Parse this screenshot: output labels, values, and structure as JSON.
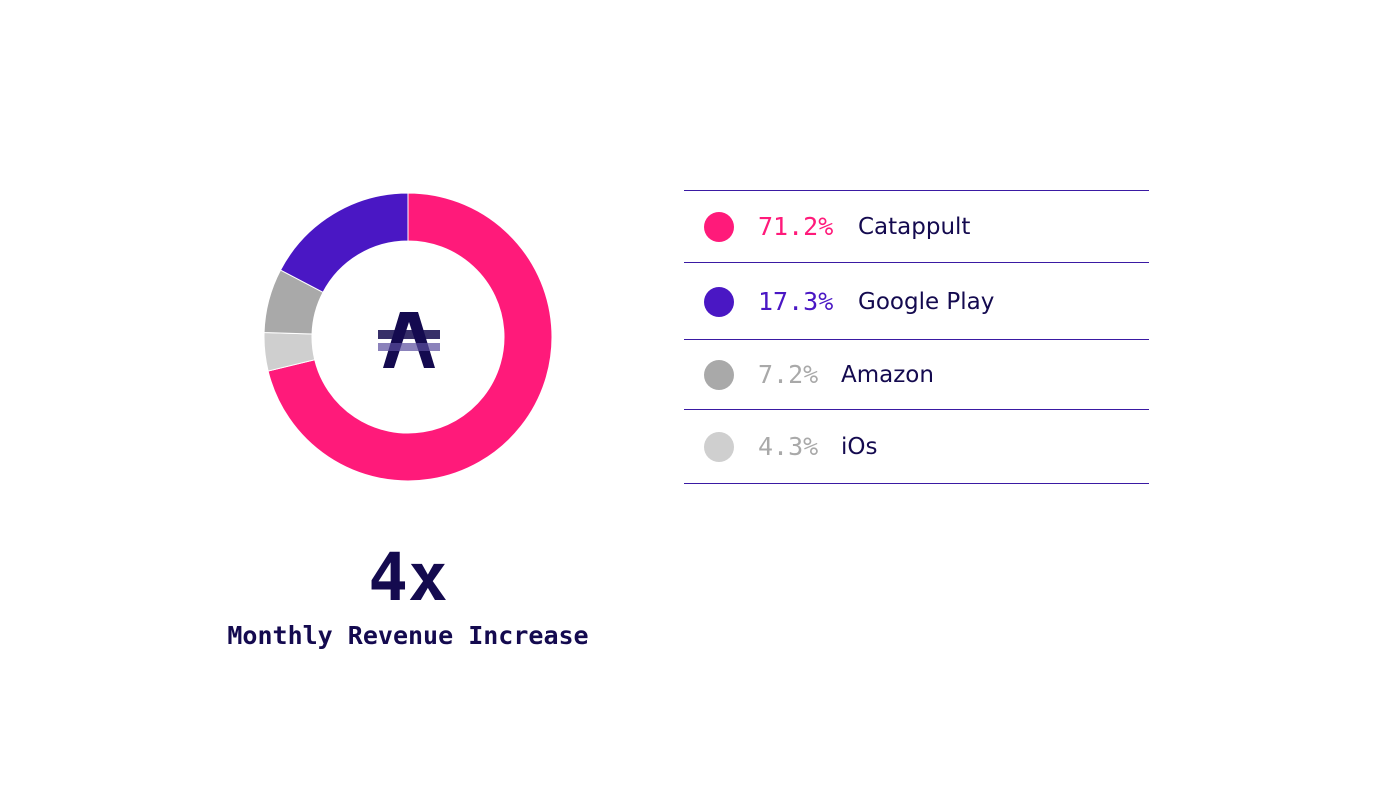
{
  "chart_data": {
    "type": "pie",
    "donut": true,
    "categories": [
      "Catappult",
      "Google Play",
      "Amazon",
      "iOs"
    ],
    "values": [
      71.2,
      17.3,
      7.2,
      4.3
    ],
    "labels": [
      "71.2%",
      "17.3%",
      "7.2%",
      "4.3%"
    ],
    "colors": [
      "#ff1a7a",
      "#4a17c4",
      "#a9a9a9",
      "#cfcfcf"
    ],
    "slice_order_clockwise_from_top": [
      "Catappult",
      "iOs",
      "Amazon",
      "Google Play"
    ],
    "legend_position": "right"
  },
  "center_icon": "strikethrough-a-logo-icon",
  "stat": {
    "value": "4x",
    "label": "Monthly Revenue Increase"
  },
  "theme": {
    "text_dark": "#140a4f",
    "rule_color": "#3a1aa3"
  }
}
